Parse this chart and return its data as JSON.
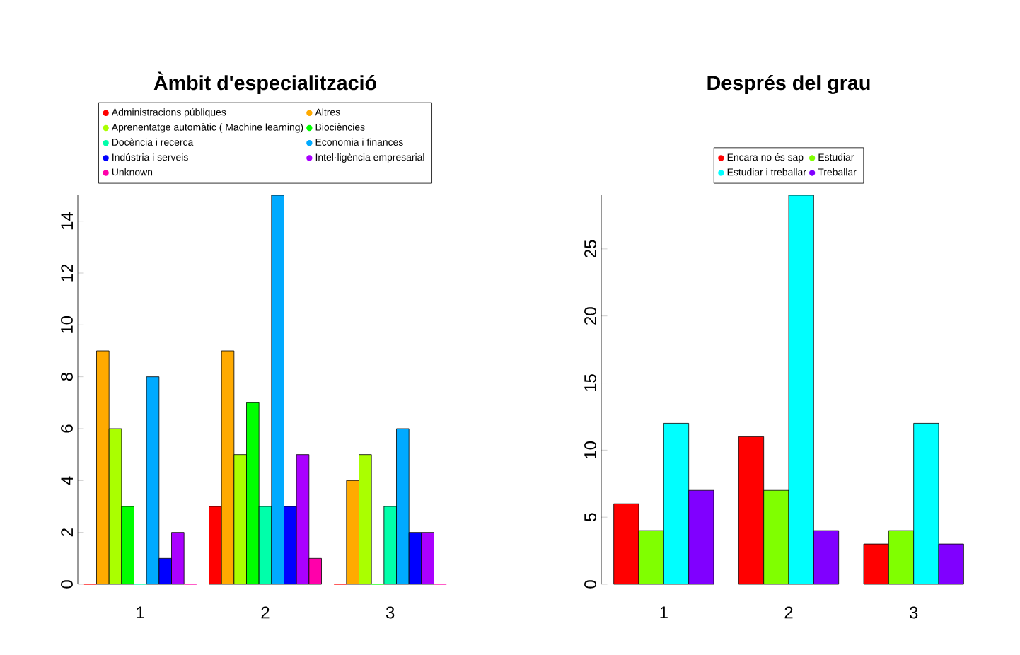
{
  "chart_data": [
    {
      "type": "bar",
      "title": "Àmbit d'especialització",
      "categories": [
        "1",
        "2",
        "3"
      ],
      "ylim": [
        0,
        15
      ],
      "yticks": [
        0,
        2,
        4,
        6,
        8,
        10,
        12,
        14
      ],
      "legend": "top",
      "series": [
        {
          "name": "Administracions públiques",
          "color": "#ff0000",
          "values": [
            0,
            3,
            0
          ]
        },
        {
          "name": "Altres",
          "color": "#ffaa00",
          "values": [
            9,
            9,
            4
          ]
        },
        {
          "name": "Aprenentatge automàtic ( Machine learning)",
          "color": "#aaff00",
          "values": [
            6,
            5,
            5
          ]
        },
        {
          "name": "Biociències",
          "color": "#00ff00",
          "values": [
            3,
            7,
            0
          ]
        },
        {
          "name": "Docència i recerca",
          "color": "#00ffaa",
          "values": [
            0,
            3,
            3
          ]
        },
        {
          "name": "Economia i finances",
          "color": "#00aaff",
          "values": [
            8,
            15,
            6
          ]
        },
        {
          "name": "Indústria i serveis",
          "color": "#0000ff",
          "values": [
            1,
            3,
            2
          ]
        },
        {
          "name": "Intel·ligència empresarial",
          "color": "#aa00ff",
          "values": [
            2,
            5,
            2
          ]
        },
        {
          "name": "Unknown",
          "color": "#ff00aa",
          "values": [
            0,
            1,
            0
          ]
        }
      ]
    },
    {
      "type": "bar",
      "title": "Després del grau",
      "categories": [
        "1",
        "2",
        "3"
      ],
      "ylim": [
        0,
        29
      ],
      "yticks": [
        0,
        5,
        10,
        15,
        20,
        25
      ],
      "legend": "top",
      "series": [
        {
          "name": "Encara no és sap",
          "color": "#ff0000",
          "values": [
            6,
            11,
            3
          ]
        },
        {
          "name": "Estudiar",
          "color": "#80ff00",
          "values": [
            4,
            7,
            4
          ]
        },
        {
          "name": "Estudiar i treballar",
          "color": "#00ffff",
          "values": [
            12,
            29,
            12
          ]
        },
        {
          "name": "Treballar",
          "color": "#8000ff",
          "values": [
            7,
            4,
            3
          ]
        }
      ]
    }
  ]
}
